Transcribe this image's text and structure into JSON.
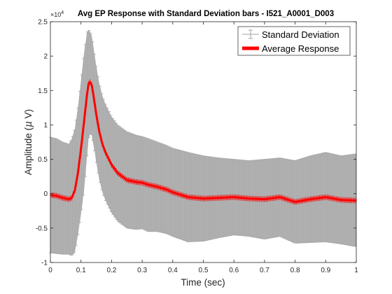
{
  "chart_data": {
    "type": "line",
    "title": "Avg EP Response with Standard Deviation bars - I521_A0001_D003",
    "xlabel": "Time (sec)",
    "ylabel_prefix": "Amplitude (",
    "ylabel_mu": "μ",
    "ylabel_suffix": " V)",
    "y_exponent_base": "×10",
    "y_exponent_power": "4",
    "xlim": [
      0,
      1
    ],
    "ylim": [
      -1,
      2.5
    ],
    "x_ticks": [
      0,
      0.1,
      0.2,
      0.3,
      0.4,
      0.5,
      0.6,
      0.7,
      0.8,
      0.9,
      1
    ],
    "x_tick_labels": [
      "0",
      "0.1",
      "0.2",
      "0.3",
      "0.4",
      "0.5",
      "0.6",
      "0.7",
      "0.8",
      "0.9",
      "1"
    ],
    "y_ticks": [
      -1,
      -0.5,
      0,
      0.5,
      1,
      1.5,
      2,
      2.5
    ],
    "y_tick_labels": [
      "-1",
      "-0.5",
      "0",
      "0.5",
      "1",
      "1.5",
      "2",
      "2.5"
    ],
    "legend_location": "top-right",
    "series": [
      {
        "name": "Average Response",
        "color": "#ff0000",
        "x": [
          0,
          0.02,
          0.04,
          0.06,
          0.07,
          0.08,
          0.09,
          0.1,
          0.11,
          0.12,
          0.125,
          0.13,
          0.135,
          0.14,
          0.145,
          0.15,
          0.16,
          0.17,
          0.18,
          0.2,
          0.22,
          0.25,
          0.28,
          0.3,
          0.32,
          0.35,
          0.38,
          0.4,
          0.45,
          0.5,
          0.55,
          0.6,
          0.65,
          0.7,
          0.75,
          0.8,
          0.85,
          0.9,
          0.95,
          1
        ],
        "y": [
          -0.02,
          -0.03,
          -0.06,
          -0.08,
          -0.06,
          0.05,
          0.3,
          0.65,
          1.05,
          1.45,
          1.6,
          1.62,
          1.58,
          1.45,
          1.3,
          1.15,
          0.9,
          0.72,
          0.6,
          0.42,
          0.3,
          0.2,
          0.17,
          0.16,
          0.13,
          0.1,
          0.06,
          0.02,
          -0.05,
          -0.07,
          -0.06,
          -0.05,
          -0.07,
          -0.08,
          -0.05,
          -0.12,
          -0.08,
          -0.05,
          -0.09,
          -0.1
        ]
      },
      {
        "name": "Standard Deviation",
        "color": "#b0b0b0",
        "x": [
          0,
          0.02,
          0.04,
          0.06,
          0.07,
          0.08,
          0.09,
          0.1,
          0.11,
          0.12,
          0.125,
          0.13,
          0.135,
          0.14,
          0.145,
          0.15,
          0.16,
          0.17,
          0.18,
          0.2,
          0.22,
          0.25,
          0.28,
          0.3,
          0.32,
          0.35,
          0.38,
          0.4,
          0.45,
          0.5,
          0.55,
          0.6,
          0.65,
          0.7,
          0.75,
          0.8,
          0.85,
          0.9,
          0.95,
          1
        ],
        "upper": [
          0.82,
          0.8,
          0.75,
          0.72,
          0.8,
          0.95,
          1.25,
          1.65,
          2.05,
          2.35,
          2.38,
          2.35,
          2.3,
          2.15,
          2.0,
          1.85,
          1.6,
          1.42,
          1.3,
          1.12,
          1.0,
          0.9,
          0.85,
          0.83,
          0.8,
          0.75,
          0.7,
          0.66,
          0.6,
          0.55,
          0.52,
          0.5,
          0.48,
          0.5,
          0.52,
          0.48,
          0.55,
          0.6,
          0.55,
          0.58
        ],
        "lower": [
          -0.86,
          -0.87,
          -0.88,
          -0.88,
          -0.9,
          -0.85,
          -0.6,
          -0.3,
          0.05,
          0.55,
          0.8,
          0.87,
          0.85,
          0.72,
          0.6,
          0.45,
          0.2,
          0.02,
          -0.1,
          -0.28,
          -0.4,
          -0.5,
          -0.52,
          -0.51,
          -0.55,
          -0.55,
          -0.58,
          -0.62,
          -0.7,
          -0.69,
          -0.64,
          -0.6,
          -0.62,
          -0.66,
          -0.62,
          -0.72,
          -0.71,
          -0.7,
          -0.73,
          -0.77
        ]
      }
    ]
  }
}
